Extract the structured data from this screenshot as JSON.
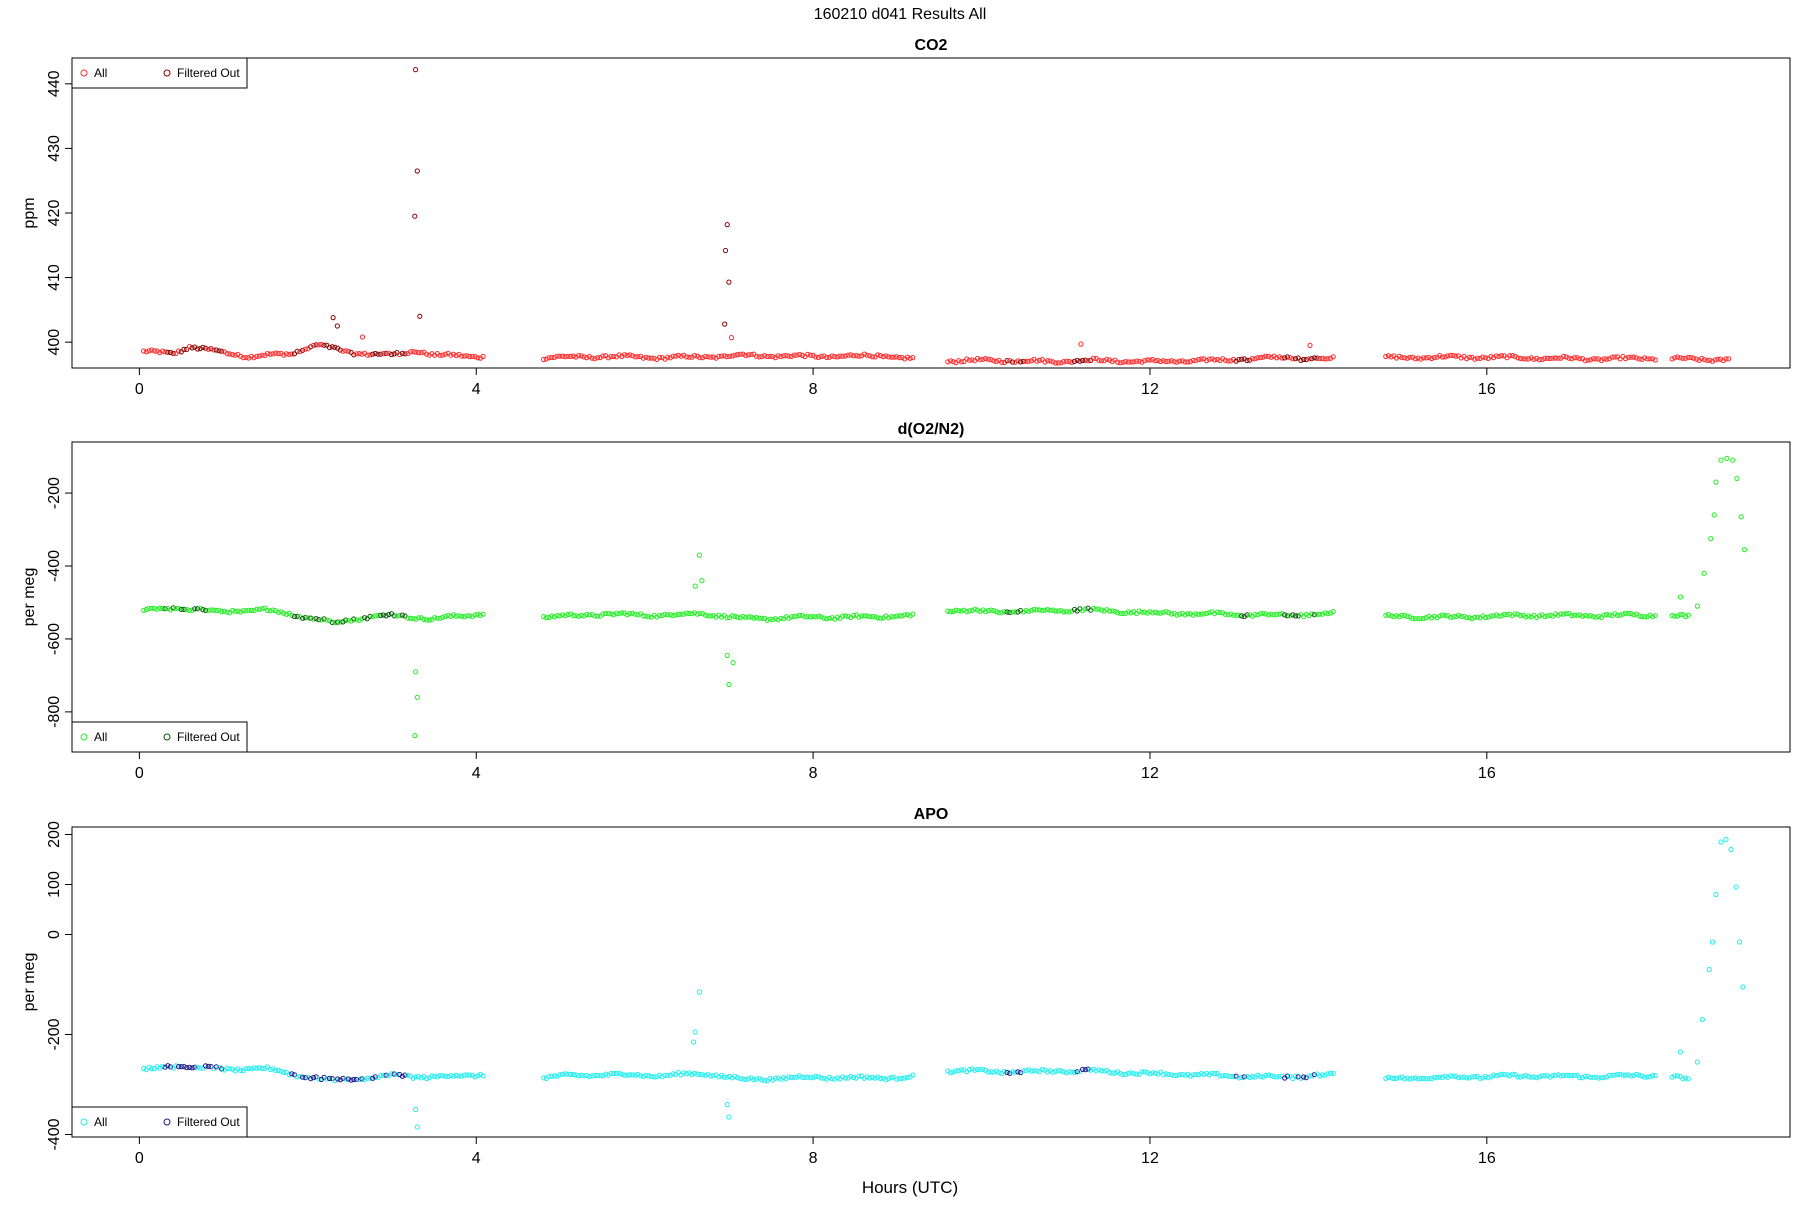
{
  "figure": {
    "title": "160210   d041   Results All",
    "xlabel": "Hours (UTC)"
  },
  "colors": {
    "co2_all": "#ff2a2a",
    "co2_filtered": "#8b0000",
    "o2n2_all": "#22ee22",
    "o2n2_filtered": "#0a5a0a",
    "apo_all": "#22eeee",
    "apo_filtered": "#1a1a8a",
    "axis": "#000000"
  },
  "chart_data": [
    {
      "type": "scatter",
      "title": "CO2",
      "ylabel": "ppm",
      "xlabel": "",
      "xlim": [
        -0.8,
        19.6
      ],
      "ylim": [
        396,
        444
      ],
      "xticks": [
        0,
        4,
        8,
        12,
        16
      ],
      "yticks": [
        400,
        410,
        420,
        430,
        440
      ],
      "grid": false,
      "legend": {
        "position": "top-left",
        "entries": [
          "All",
          "Filtered Out"
        ]
      },
      "baseline_segments": [
        {
          "x": [
            0.05,
            0.4,
            0.6,
            0.9,
            1.3,
            1.8,
            2.1,
            2.5,
            3.0,
            3.3,
            3.5,
            4.1
          ],
          "y": [
            398.5,
            398.3,
            399.3,
            398.6,
            397.8,
            398.2,
            399.6,
            398.4,
            398.0,
            398.7,
            398.0,
            397.8
          ]
        },
        {
          "x": [
            4.8,
            5.5,
            6.2,
            6.9,
            7.1,
            8.0,
            8.8,
            9.2
          ],
          "y": [
            397.6,
            397.8,
            397.6,
            397.8,
            398.0,
            397.8,
            397.9,
            397.4
          ]
        },
        {
          "x": [
            9.6,
            10.2,
            10.8,
            11.3,
            12.0,
            12.8,
            13.5,
            14.2
          ],
          "y": [
            397.1,
            397.2,
            397.0,
            397.2,
            397.0,
            397.2,
            397.6,
            397.4
          ]
        },
        {
          "x": [
            14.8,
            15.6,
            16.4,
            17.2,
            18.0
          ],
          "y": [
            397.6,
            397.7,
            397.6,
            397.4,
            397.5
          ]
        },
        {
          "x": [
            18.2,
            18.9
          ],
          "y": [
            397.4,
            397.3
          ]
        }
      ],
      "all_spikes": [
        {
          "x": 3.28,
          "y": 442.2
        },
        {
          "x": 3.3,
          "y": 426.5
        },
        {
          "x": 3.27,
          "y": 419.5
        },
        {
          "x": 3.33,
          "y": 404.0
        },
        {
          "x": 6.98,
          "y": 418.2
        },
        {
          "x": 6.96,
          "y": 414.2
        },
        {
          "x": 7.0,
          "y": 409.3
        },
        {
          "x": 6.95,
          "y": 402.8
        },
        {
          "x": 7.03,
          "y": 400.7
        },
        {
          "x": 2.3,
          "y": 403.8
        },
        {
          "x": 2.35,
          "y": 402.5
        },
        {
          "x": 2.65,
          "y": 400.8
        },
        {
          "x": 11.18,
          "y": 399.7
        },
        {
          "x": 13.9,
          "y": 399.5
        }
      ],
      "filtered_ranges": [
        [
          0.3,
          1.0
        ],
        [
          1.8,
          3.2
        ],
        [
          10.3,
          10.5
        ],
        [
          11.1,
          11.3
        ],
        [
          13.0,
          13.2
        ],
        [
          13.6,
          14.0
        ]
      ],
      "series": [
        {
          "name": "All"
        },
        {
          "name": "Filtered Out"
        }
      ]
    },
    {
      "type": "scatter",
      "title": "d(O2/N2)",
      "ylabel": "per meg",
      "xlabel": "",
      "xlim": [
        -0.8,
        19.6
      ],
      "ylim": [
        -910,
        -60
      ],
      "xticks": [
        0,
        4,
        8,
        12,
        16
      ],
      "yticks": [
        -800,
        -600,
        -400,
        -200
      ],
      "grid": false,
      "legend": {
        "position": "bottom-left",
        "entries": [
          "All",
          "Filtered Out"
        ]
      },
      "baseline_segments": [
        {
          "x": [
            0.05,
            0.5,
            1.0,
            1.5,
            2.0,
            2.3,
            2.7,
            3.0,
            3.5,
            4.1
          ],
          "y": [
            -520,
            -515,
            -525,
            -520,
            -540,
            -555,
            -540,
            -535,
            -545,
            -530
          ]
        },
        {
          "x": [
            4.8,
            5.5,
            6.2,
            6.7,
            7.2,
            8.0,
            8.6,
            9.2
          ],
          "y": [
            -540,
            -532,
            -535,
            -530,
            -545,
            -540,
            -540,
            -535
          ]
        },
        {
          "x": [
            9.6,
            10.4,
            11.2,
            12.0,
            12.8,
            13.6,
            14.2
          ],
          "y": [
            -522,
            -525,
            -520,
            -528,
            -532,
            -535,
            -530
          ]
        },
        {
          "x": [
            14.8,
            15.6,
            16.4,
            17.2,
            18.0
          ],
          "y": [
            -538,
            -540,
            -535,
            -536,
            -534
          ]
        },
        {
          "x": [
            18.2,
            18.4
          ],
          "y": [
            -535,
            -540
          ]
        }
      ],
      "all_spikes": [
        {
          "x": 6.65,
          "y": -370
        },
        {
          "x": 6.68,
          "y": -440
        },
        {
          "x": 6.6,
          "y": -455
        },
        {
          "x": 6.98,
          "y": -645
        },
        {
          "x": 7.0,
          "y": -725
        },
        {
          "x": 7.05,
          "y": -665
        },
        {
          "x": 3.28,
          "y": -690
        },
        {
          "x": 3.3,
          "y": -760
        },
        {
          "x": 3.27,
          "y": -865
        },
        {
          "x": 18.3,
          "y": -485
        },
        {
          "x": 18.5,
          "y": -510
        },
        {
          "x": 18.58,
          "y": -420
        },
        {
          "x": 18.66,
          "y": -325
        },
        {
          "x": 18.7,
          "y": -260
        },
        {
          "x": 18.72,
          "y": -170
        },
        {
          "x": 18.78,
          "y": -110
        },
        {
          "x": 18.85,
          "y": -105
        },
        {
          "x": 18.92,
          "y": -110
        },
        {
          "x": 18.97,
          "y": -160
        },
        {
          "x": 19.02,
          "y": -265
        },
        {
          "x": 19.06,
          "y": -355
        }
      ],
      "filtered_ranges": [
        [
          0.3,
          1.0
        ],
        [
          1.8,
          3.2
        ],
        [
          10.3,
          10.5
        ],
        [
          11.1,
          11.3
        ],
        [
          13.0,
          13.2
        ],
        [
          13.6,
          14.0
        ]
      ],
      "series": [
        {
          "name": "All"
        },
        {
          "name": "Filtered Out"
        }
      ]
    },
    {
      "type": "scatter",
      "title": "APO",
      "ylabel": "per meg",
      "xlabel": "Hours (UTC)",
      "xlim": [
        -0.8,
        19.6
      ],
      "ylim": [
        -405,
        215
      ],
      "xticks": [
        0,
        4,
        8,
        12,
        16
      ],
      "yticks": [
        -400,
        -200,
        0,
        100,
        200
      ],
      "ytick_labels": [
        "-400",
        "-200",
        "0",
        "100",
        "200"
      ],
      "grid": false,
      "legend": {
        "position": "bottom-left",
        "entries": [
          "All",
          "Filtered Out"
        ]
      },
      "baseline_segments": [
        {
          "x": [
            0.05,
            0.5,
            1.0,
            1.5,
            2.0,
            2.3,
            2.7,
            3.0,
            3.5,
            4.1
          ],
          "y": [
            -270,
            -262,
            -270,
            -268,
            -285,
            -292,
            -288,
            -282,
            -285,
            -280
          ]
        },
        {
          "x": [
            4.8,
            5.5,
            6.2,
            6.7,
            7.2,
            8.0,
            8.6,
            9.2
          ],
          "y": [
            -285,
            -280,
            -282,
            -278,
            -290,
            -285,
            -287,
            -285
          ]
        },
        {
          "x": [
            9.6,
            10.4,
            11.2,
            12.0,
            12.8,
            13.6,
            14.2
          ],
          "y": [
            -272,
            -275,
            -272,
            -278,
            -282,
            -285,
            -280
          ]
        },
        {
          "x": [
            14.8,
            15.6,
            16.4,
            17.2,
            18.0
          ],
          "y": [
            -288,
            -285,
            -283,
            -284,
            -282
          ]
        },
        {
          "x": [
            18.2,
            18.4
          ],
          "y": [
            -285,
            -290
          ]
        }
      ],
      "all_spikes": [
        {
          "x": 6.65,
          "y": -115
        },
        {
          "x": 6.6,
          "y": -195
        },
        {
          "x": 6.58,
          "y": -215
        },
        {
          "x": 6.98,
          "y": -340
        },
        {
          "x": 7.0,
          "y": -365
        },
        {
          "x": 3.28,
          "y": -350
        },
        {
          "x": 3.3,
          "y": -385
        },
        {
          "x": 18.3,
          "y": -235
        },
        {
          "x": 18.5,
          "y": -255
        },
        {
          "x": 18.56,
          "y": -170
        },
        {
          "x": 18.64,
          "y": -70
        },
        {
          "x": 18.68,
          "y": -15
        },
        {
          "x": 18.72,
          "y": 80
        },
        {
          "x": 18.78,
          "y": 185
        },
        {
          "x": 18.84,
          "y": 190
        },
        {
          "x": 18.9,
          "y": 170
        },
        {
          "x": 18.96,
          "y": 95
        },
        {
          "x": 19.0,
          "y": -15
        },
        {
          "x": 19.04,
          "y": -105
        }
      ],
      "filtered_ranges": [
        [
          0.3,
          1.0
        ],
        [
          1.8,
          3.2
        ],
        [
          10.3,
          10.5
        ],
        [
          11.1,
          11.3
        ],
        [
          13.0,
          13.2
        ],
        [
          13.6,
          14.0
        ]
      ],
      "series": [
        {
          "name": "All"
        },
        {
          "name": "Filtered Out"
        }
      ]
    }
  ]
}
